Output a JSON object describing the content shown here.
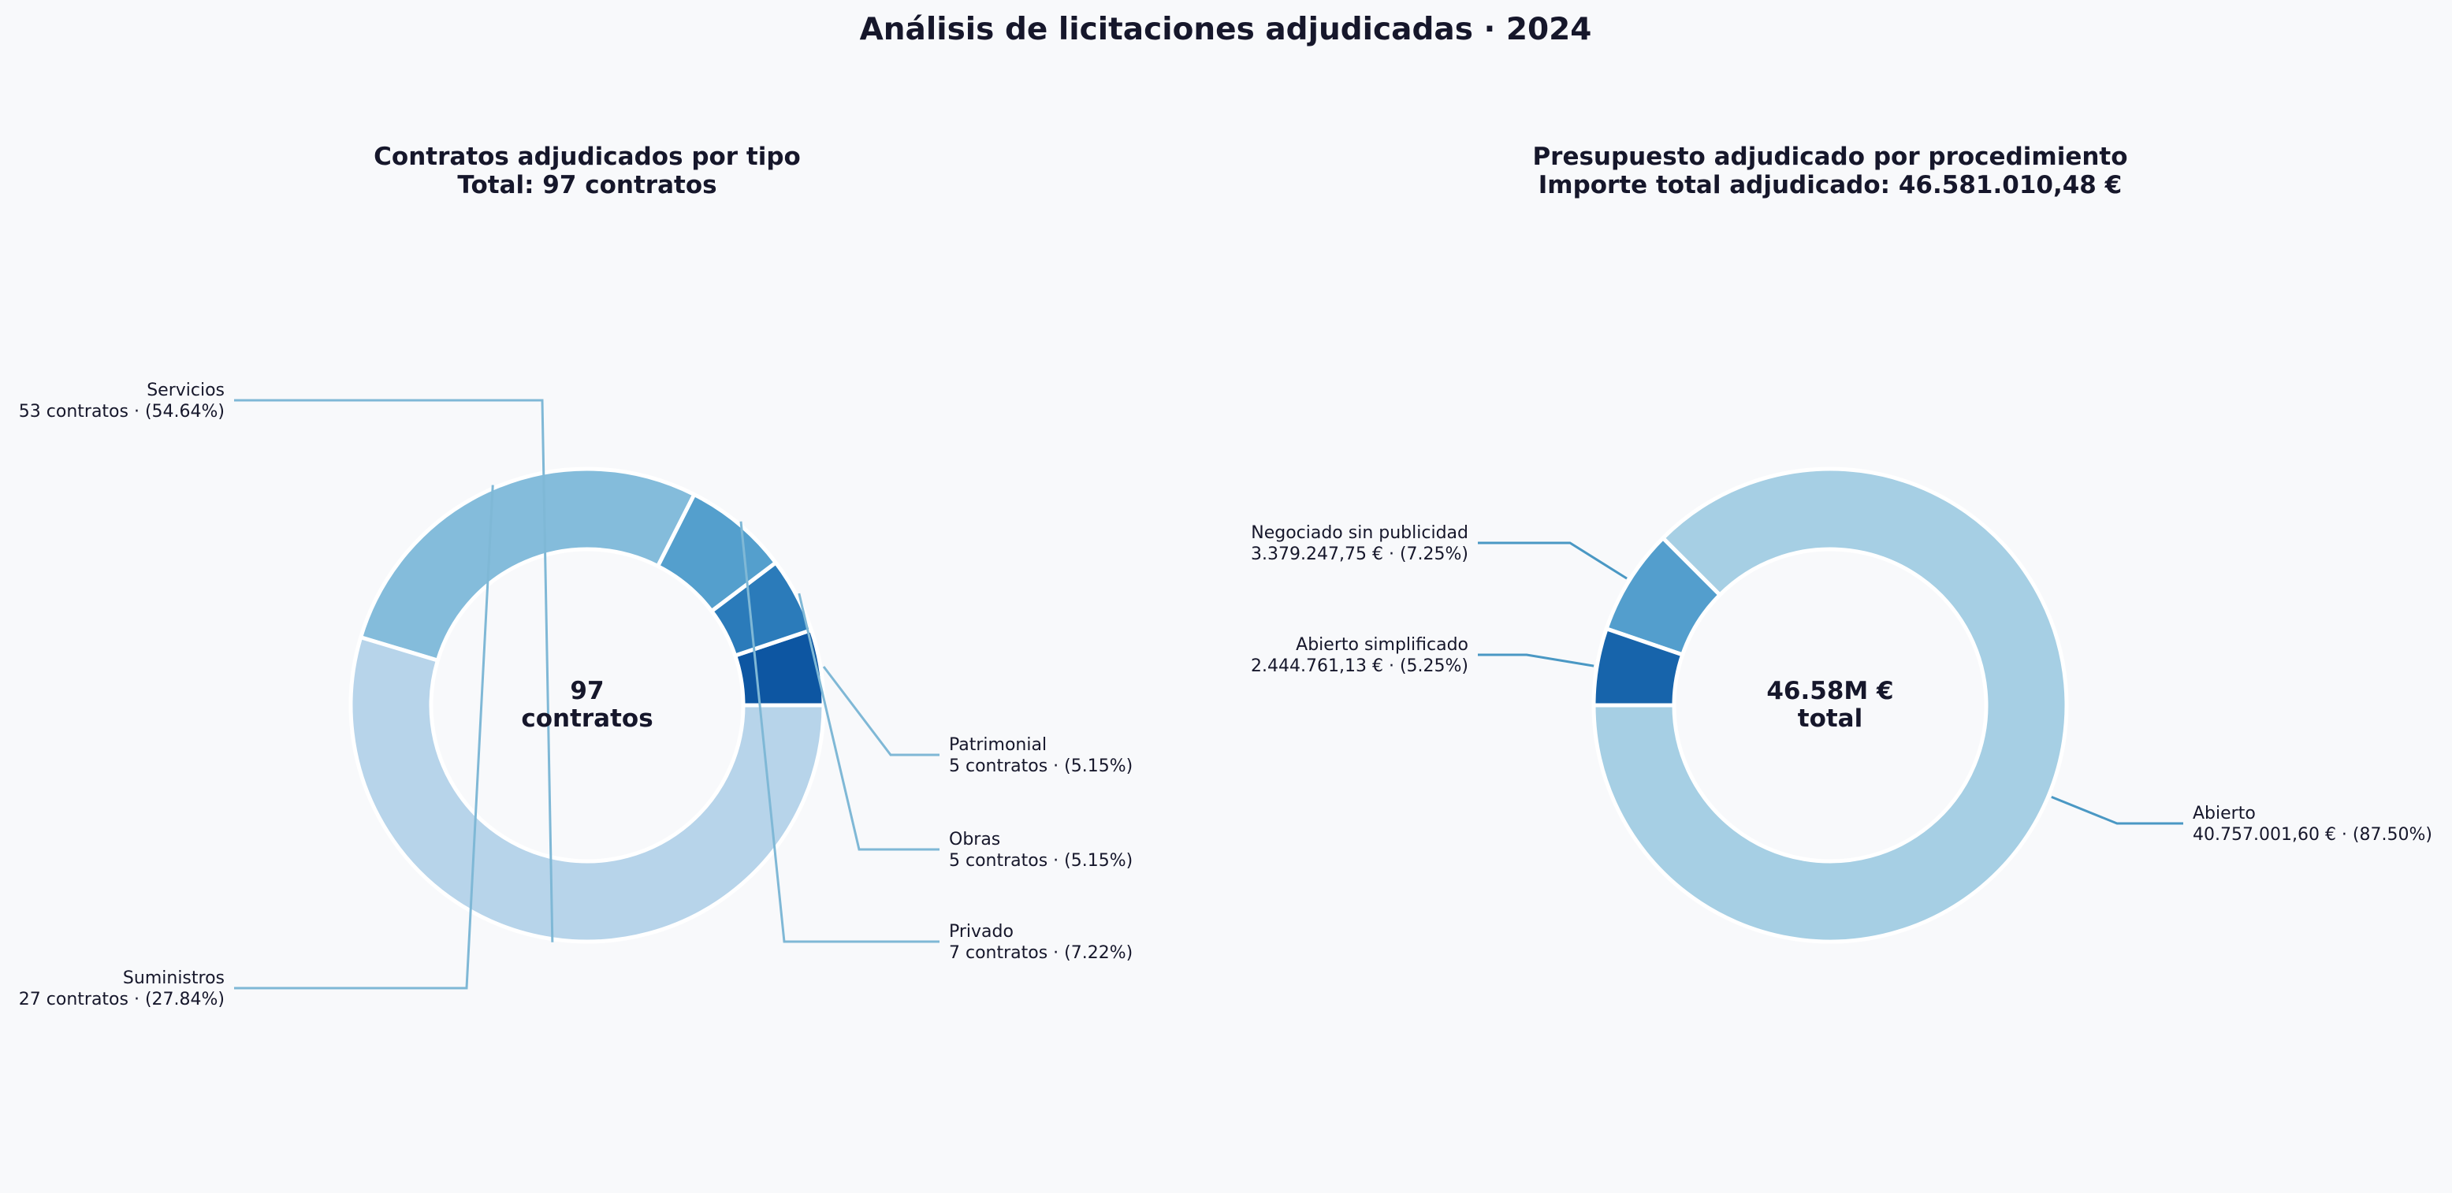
{
  "title": "Análisis de licitaciones adjudicadas · 2024",
  "chart_data": [
    {
      "type": "pie",
      "donut": true,
      "title": "Contratos adjudicados por tipo",
      "subtitle": "Total: 97 contratos",
      "center_text": [
        "97",
        "contratos"
      ],
      "unit": "contratos",
      "total": 97,
      "slices": [
        {
          "name": "Patrimonial",
          "value": 5,
          "percent": 5.15,
          "label_line1": "Patrimonial",
          "label_line2": "5 contratos · (5.15%)",
          "color": "#0d56a2"
        },
        {
          "name": "Obras",
          "value": 5,
          "percent": 5.15,
          "label_line1": "Obras",
          "label_line2": "5 contratos · (5.15%)",
          "color": "#2b7bba"
        },
        {
          "name": "Privado",
          "value": 7,
          "percent": 7.22,
          "label_line1": "Privado",
          "label_line2": "7 contratos · (7.22%)",
          "color": "#549fcd"
        },
        {
          "name": "Suministros",
          "value": 27,
          "percent": 27.84,
          "label_line1": "Suministros",
          "label_line2": "27 contratos · (27.84%)",
          "color": "#84bcdb"
        },
        {
          "name": "Servicios",
          "value": 53,
          "percent": 54.64,
          "label_line1": "Servicios",
          "label_line2": "53 contratos · (54.64%)",
          "color": "#b7d4ea"
        }
      ],
      "leader_color": "#7fb8d6"
    },
    {
      "type": "pie",
      "donut": true,
      "title": "Presupuesto adjudicado por procedimiento",
      "subtitle": "Importe total adjudicado: 46.581.010,48 €",
      "center_text": [
        "46.58M €",
        "total"
      ],
      "unit": "€",
      "total": 46581010.48,
      "slices": [
        {
          "name": "Abierto",
          "value": 40757001.6,
          "percent": 87.5,
          "label_line1": "Abierto",
          "label_line2": "40.757.001,60 € · (87.50%)",
          "color": "#a6cfe4"
        },
        {
          "name": "Negociado sin publicidad",
          "value": 3379247.75,
          "percent": 7.25,
          "label_line1": "Negociado sin publicidad",
          "label_line2": "3.379.247,75 € · (7.25%)",
          "color": "#539ecd"
        },
        {
          "name": "Abierto simplificado",
          "value": 2444761.13,
          "percent": 5.25,
          "label_line1": "Abierto simplificado",
          "label_line2": "2.444.761,13 € · (5.25%)",
          "color": "#1764ab"
        }
      ],
      "leader_color": "#4a98c4"
    }
  ],
  "background": "#f8f9fb",
  "text_color": "#16172b"
}
